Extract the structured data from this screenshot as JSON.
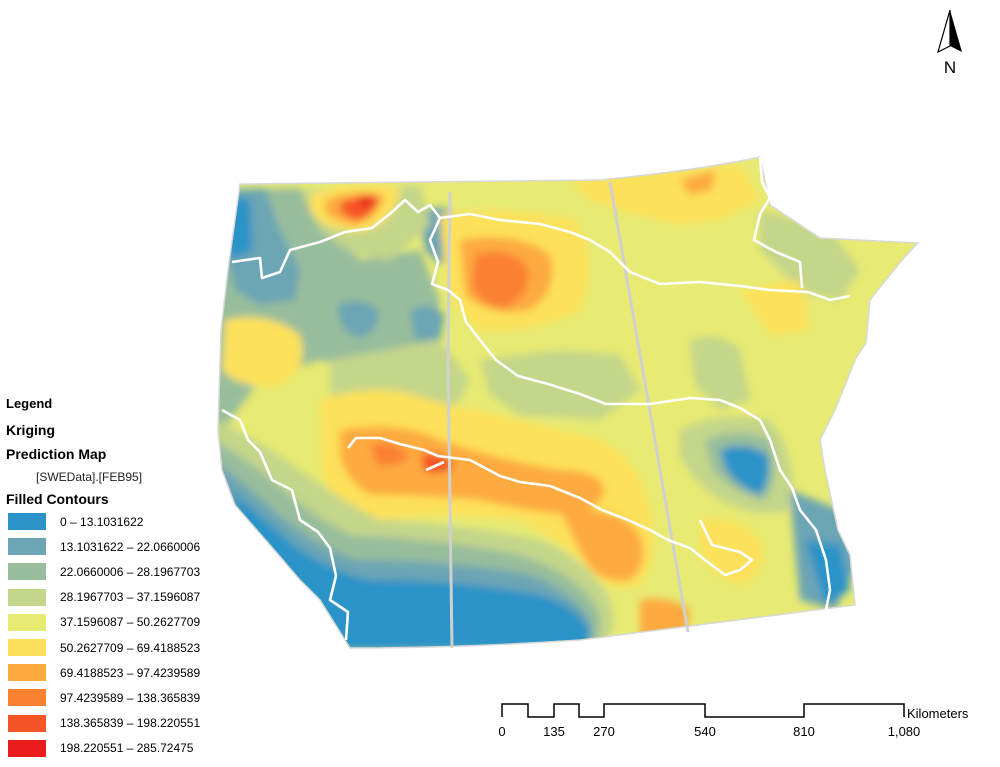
{
  "legend": {
    "title": "Legend",
    "layer_title_line1": "Kriging",
    "layer_title_line2": "Prediction Map",
    "field": "[SWEData].[FEB95]",
    "subheading": "Filled Contours",
    "classes": [
      {
        "label": "0 – 13.1031622",
        "color": "#2b93c8"
      },
      {
        "label": "13.1031622 – 22.0660006",
        "color": "#6ca5b4"
      },
      {
        "label": "22.0660006 – 28.1967703",
        "color": "#98bd9c"
      },
      {
        "label": "28.1967703 – 37.1596087",
        "color": "#c4d68a"
      },
      {
        "label": "37.1596087 – 50.2627709",
        "color": "#e7ea73"
      },
      {
        "label": "50.2627709 – 69.4188523",
        "color": "#fde15a"
      },
      {
        "label": "69.4188523 – 97.4239589",
        "color": "#fdaa3f"
      },
      {
        "label": "97.4239589 – 138.365839",
        "color": "#fb8030"
      },
      {
        "label": "138.365839 – 198.220551",
        "color": "#f55427"
      },
      {
        "label": "198.220551 – 285.72475",
        "color": "#ea1c1c"
      }
    ]
  },
  "north_arrow": {
    "letter": "N"
  },
  "scale_bar": {
    "unit": "Kilometers",
    "ticks": [
      "0",
      "135",
      "270",
      "540",
      "810",
      "1,080"
    ]
  }
}
